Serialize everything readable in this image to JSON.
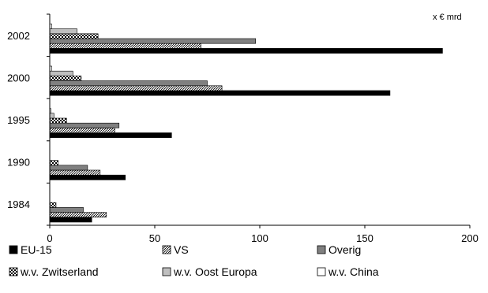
{
  "chart_data": {
    "type": "bar",
    "orientation": "horizontal",
    "unit_label": "x € mrd",
    "categories": [
      "2002",
      "2000",
      "1995",
      "1990",
      "1984"
    ],
    "x_ticks": [
      "0",
      "50",
      "100",
      "150",
      "200"
    ],
    "xlim": [
      0,
      200
    ],
    "grid": false,
    "legend_position": "bottom",
    "series": [
      {
        "name": "EU-15",
        "pattern": "solid-black",
        "values": [
          187,
          162,
          58,
          36,
          20
        ]
      },
      {
        "name": "VS",
        "pattern": "diagonal-hatch",
        "values": [
          72,
          82,
          31,
          24,
          27
        ]
      },
      {
        "name": "Overig",
        "pattern": "dark-gray",
        "values": [
          98,
          75,
          33,
          18,
          16
        ]
      },
      {
        "name": "w.v. Zwitserland",
        "pattern": "checkered",
        "values": [
          23,
          15,
          8,
          4,
          3
        ]
      },
      {
        "name": "w.v. Oost Europa",
        "pattern": "light-gray",
        "values": [
          13,
          11,
          2,
          0,
          0
        ]
      },
      {
        "name": "w.v. China",
        "pattern": "white",
        "values": [
          1,
          1,
          0.5,
          0,
          0
        ]
      }
    ]
  }
}
